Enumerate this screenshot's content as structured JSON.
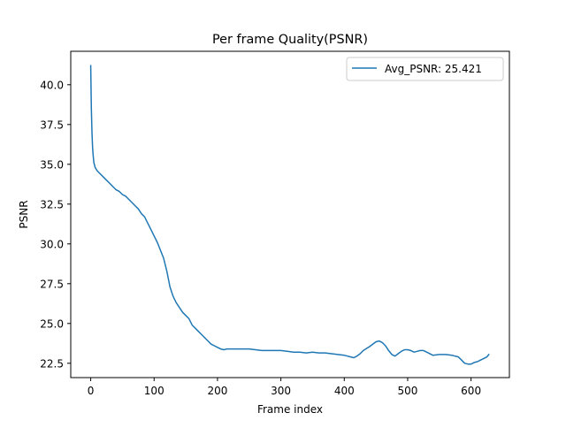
{
  "chart_data": {
    "type": "line",
    "title": "Per frame Quality(PSNR)",
    "xlabel": "Frame index",
    "ylabel": "PSNR",
    "xlim": [
      -31.5,
      660.5
    ],
    "ylim": [
      21.6,
      42.1
    ],
    "xticks": [
      0,
      100,
      200,
      300,
      400,
      500,
      600
    ],
    "yticks": [
      22.5,
      25.0,
      27.5,
      30.0,
      32.5,
      35.0,
      37.5,
      40.0
    ],
    "ytick_labels": [
      "22.5",
      "25.0",
      "27.5",
      "30.0",
      "32.5",
      "35.0",
      "37.5",
      "40.0"
    ],
    "grid": false,
    "legend_position": "top-right",
    "series": [
      {
        "name": "Avg_PSNR: 25.421",
        "color": "#1f77b4",
        "x": [
          0,
          1,
          2,
          3,
          4,
          5,
          7,
          10,
          15,
          20,
          25,
          30,
          35,
          40,
          45,
          50,
          55,
          60,
          65,
          70,
          75,
          80,
          85,
          90,
          95,
          100,
          105,
          110,
          115,
          120,
          125,
          130,
          135,
          140,
          145,
          150,
          155,
          160,
          165,
          170,
          175,
          180,
          185,
          190,
          195,
          200,
          205,
          210,
          215,
          220,
          225,
          230,
          240,
          250,
          260,
          270,
          280,
          290,
          300,
          310,
          320,
          330,
          340,
          350,
          360,
          370,
          380,
          390,
          400,
          405,
          410,
          415,
          420,
          425,
          430,
          440,
          450,
          455,
          460,
          465,
          470,
          475,
          480,
          485,
          490,
          495,
          500,
          505,
          510,
          515,
          520,
          525,
          530,
          540,
          550,
          560,
          570,
          580,
          585,
          590,
          595,
          600,
          605,
          610,
          615,
          620,
          625,
          628
        ],
        "y": [
          41.2,
          38.5,
          37.0,
          36.0,
          35.5,
          35.1,
          34.8,
          34.6,
          34.4,
          34.2,
          34.0,
          33.8,
          33.6,
          33.4,
          33.3,
          33.1,
          33.0,
          32.8,
          32.6,
          32.4,
          32.2,
          31.9,
          31.7,
          31.3,
          30.9,
          30.5,
          30.1,
          29.6,
          29.1,
          28.3,
          27.3,
          26.7,
          26.3,
          26.0,
          25.7,
          25.5,
          25.3,
          24.9,
          24.7,
          24.5,
          24.3,
          24.1,
          23.9,
          23.7,
          23.6,
          23.5,
          23.4,
          23.35,
          23.4,
          23.4,
          23.4,
          23.4,
          23.4,
          23.4,
          23.35,
          23.3,
          23.3,
          23.3,
          23.3,
          23.25,
          23.2,
          23.2,
          23.15,
          23.2,
          23.15,
          23.15,
          23.1,
          23.05,
          23.0,
          22.95,
          22.9,
          22.85,
          22.95,
          23.1,
          23.3,
          23.55,
          23.85,
          23.9,
          23.8,
          23.6,
          23.3,
          23.05,
          22.95,
          23.1,
          23.25,
          23.35,
          23.35,
          23.3,
          23.2,
          23.25,
          23.3,
          23.3,
          23.2,
          23.0,
          23.05,
          23.05,
          23.0,
          22.9,
          22.7,
          22.5,
          22.45,
          22.45,
          22.55,
          22.6,
          22.7,
          22.8,
          22.9,
          23.05
        ]
      }
    ]
  }
}
